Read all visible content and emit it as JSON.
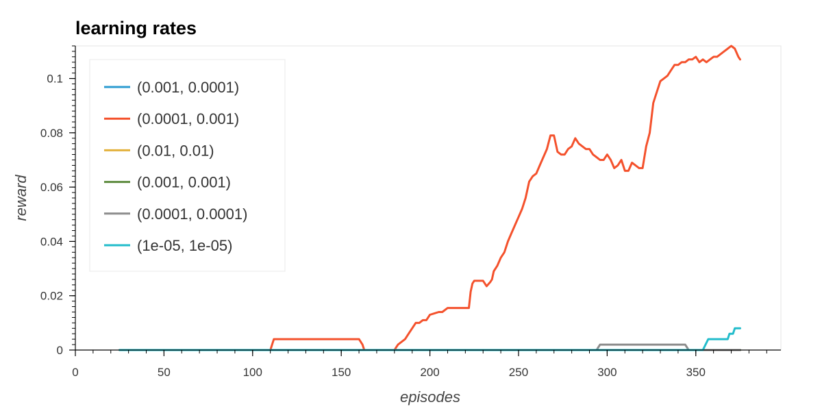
{
  "chart_data": {
    "type": "line",
    "title": "learning rates",
    "xlabel": "episodes",
    "ylabel": "reward",
    "xlim": [
      0,
      398
    ],
    "ylim": [
      0,
      0.112
    ],
    "x_ticks": [
      0,
      50,
      100,
      150,
      200,
      250,
      300,
      350
    ],
    "x_tick_labels": [
      "0",
      "50",
      "100",
      "150",
      "200",
      "250",
      "300",
      "350"
    ],
    "y_ticks": [
      0,
      0.02,
      0.04,
      0.06,
      0.08,
      0.1
    ],
    "y_tick_labels": [
      "0",
      "0.02",
      "0.04",
      "0.06",
      "0.08",
      "0.1"
    ],
    "grid": false,
    "legend_position": "top-left",
    "series": [
      {
        "name": "(0.001, 0.0001)",
        "color": "#2b9bd0",
        "x": [
          25,
          375
        ],
        "y": [
          0,
          0
        ]
      },
      {
        "name": "(0.0001, 0.001)",
        "color": "#f4512c",
        "x": [
          25,
          110,
          112,
          160,
          162,
          163,
          180,
          182,
          184,
          186,
          188,
          190,
          192,
          194,
          196,
          198,
          200,
          205,
          207,
          210,
          215,
          220,
          222,
          223,
          224,
          225,
          226,
          228,
          230,
          232,
          234,
          235,
          236,
          238,
          240,
          242,
          244,
          246,
          248,
          250,
          252,
          254,
          256,
          258,
          260,
          262,
          264,
          266,
          268,
          270,
          272,
          274,
          276,
          278,
          280,
          282,
          284,
          286,
          288,
          290,
          292,
          294,
          296,
          298,
          300,
          302,
          304,
          306,
          308,
          310,
          312,
          314,
          316,
          318,
          320,
          322,
          324,
          326,
          328,
          330,
          332,
          334,
          336,
          338,
          340,
          342,
          344,
          346,
          348,
          350,
          352,
          354,
          356,
          358,
          360,
          362,
          364,
          366,
          368,
          370,
          372,
          374,
          375
        ],
        "y": [
          0,
          0,
          0.004,
          0.004,
          0.002,
          0,
          0,
          0.002,
          0.003,
          0.004,
          0.006,
          0.008,
          0.01,
          0.01,
          0.011,
          0.011,
          0.013,
          0.014,
          0.014,
          0.0155,
          0.0155,
          0.0155,
          0.0155,
          0.0215,
          0.0245,
          0.0255,
          0.0255,
          0.0255,
          0.0255,
          0.0235,
          0.025,
          0.026,
          0.029,
          0.031,
          0.034,
          0.036,
          0.04,
          0.043,
          0.046,
          0.049,
          0.052,
          0.056,
          0.062,
          0.064,
          0.065,
          0.068,
          0.071,
          0.074,
          0.079,
          0.079,
          0.073,
          0.072,
          0.072,
          0.074,
          0.075,
          0.078,
          0.076,
          0.075,
          0.074,
          0.074,
          0.072,
          0.071,
          0.07,
          0.07,
          0.072,
          0.07,
          0.067,
          0.068,
          0.07,
          0.066,
          0.066,
          0.069,
          0.068,
          0.067,
          0.067,
          0.075,
          0.08,
          0.091,
          0.095,
          0.099,
          0.1,
          0.101,
          0.103,
          0.105,
          0.105,
          0.106,
          0.106,
          0.107,
          0.107,
          0.108,
          0.106,
          0.107,
          0.106,
          0.107,
          0.108,
          0.108,
          0.109,
          0.11,
          0.111,
          0.112,
          0.111,
          0.108,
          0.107
        ]
      },
      {
        "name": "(0.01, 0.01)",
        "color": "#e3b13b",
        "x": [
          25,
          375
        ],
        "y": [
          0,
          0
        ]
      },
      {
        "name": "(0.001, 0.001)",
        "color": "#5e8b3f",
        "x": [
          25,
          375
        ],
        "y": [
          0,
          0
        ]
      },
      {
        "name": "(0.0001, 0.0001)",
        "color": "#8c8c8c",
        "x": [
          25,
          294,
          296,
          344,
          346,
          375
        ],
        "y": [
          0,
          0,
          0.002,
          0.002,
          0,
          0
        ]
      },
      {
        "name": "(1e-05, 1e-05)",
        "color": "#22bccb",
        "x": [
          25,
          354,
          357,
          368,
          369,
          371,
          372,
          375
        ],
        "y": [
          0,
          0,
          0.004,
          0.004,
          0.006,
          0.006,
          0.008,
          0.008
        ]
      }
    ]
  }
}
